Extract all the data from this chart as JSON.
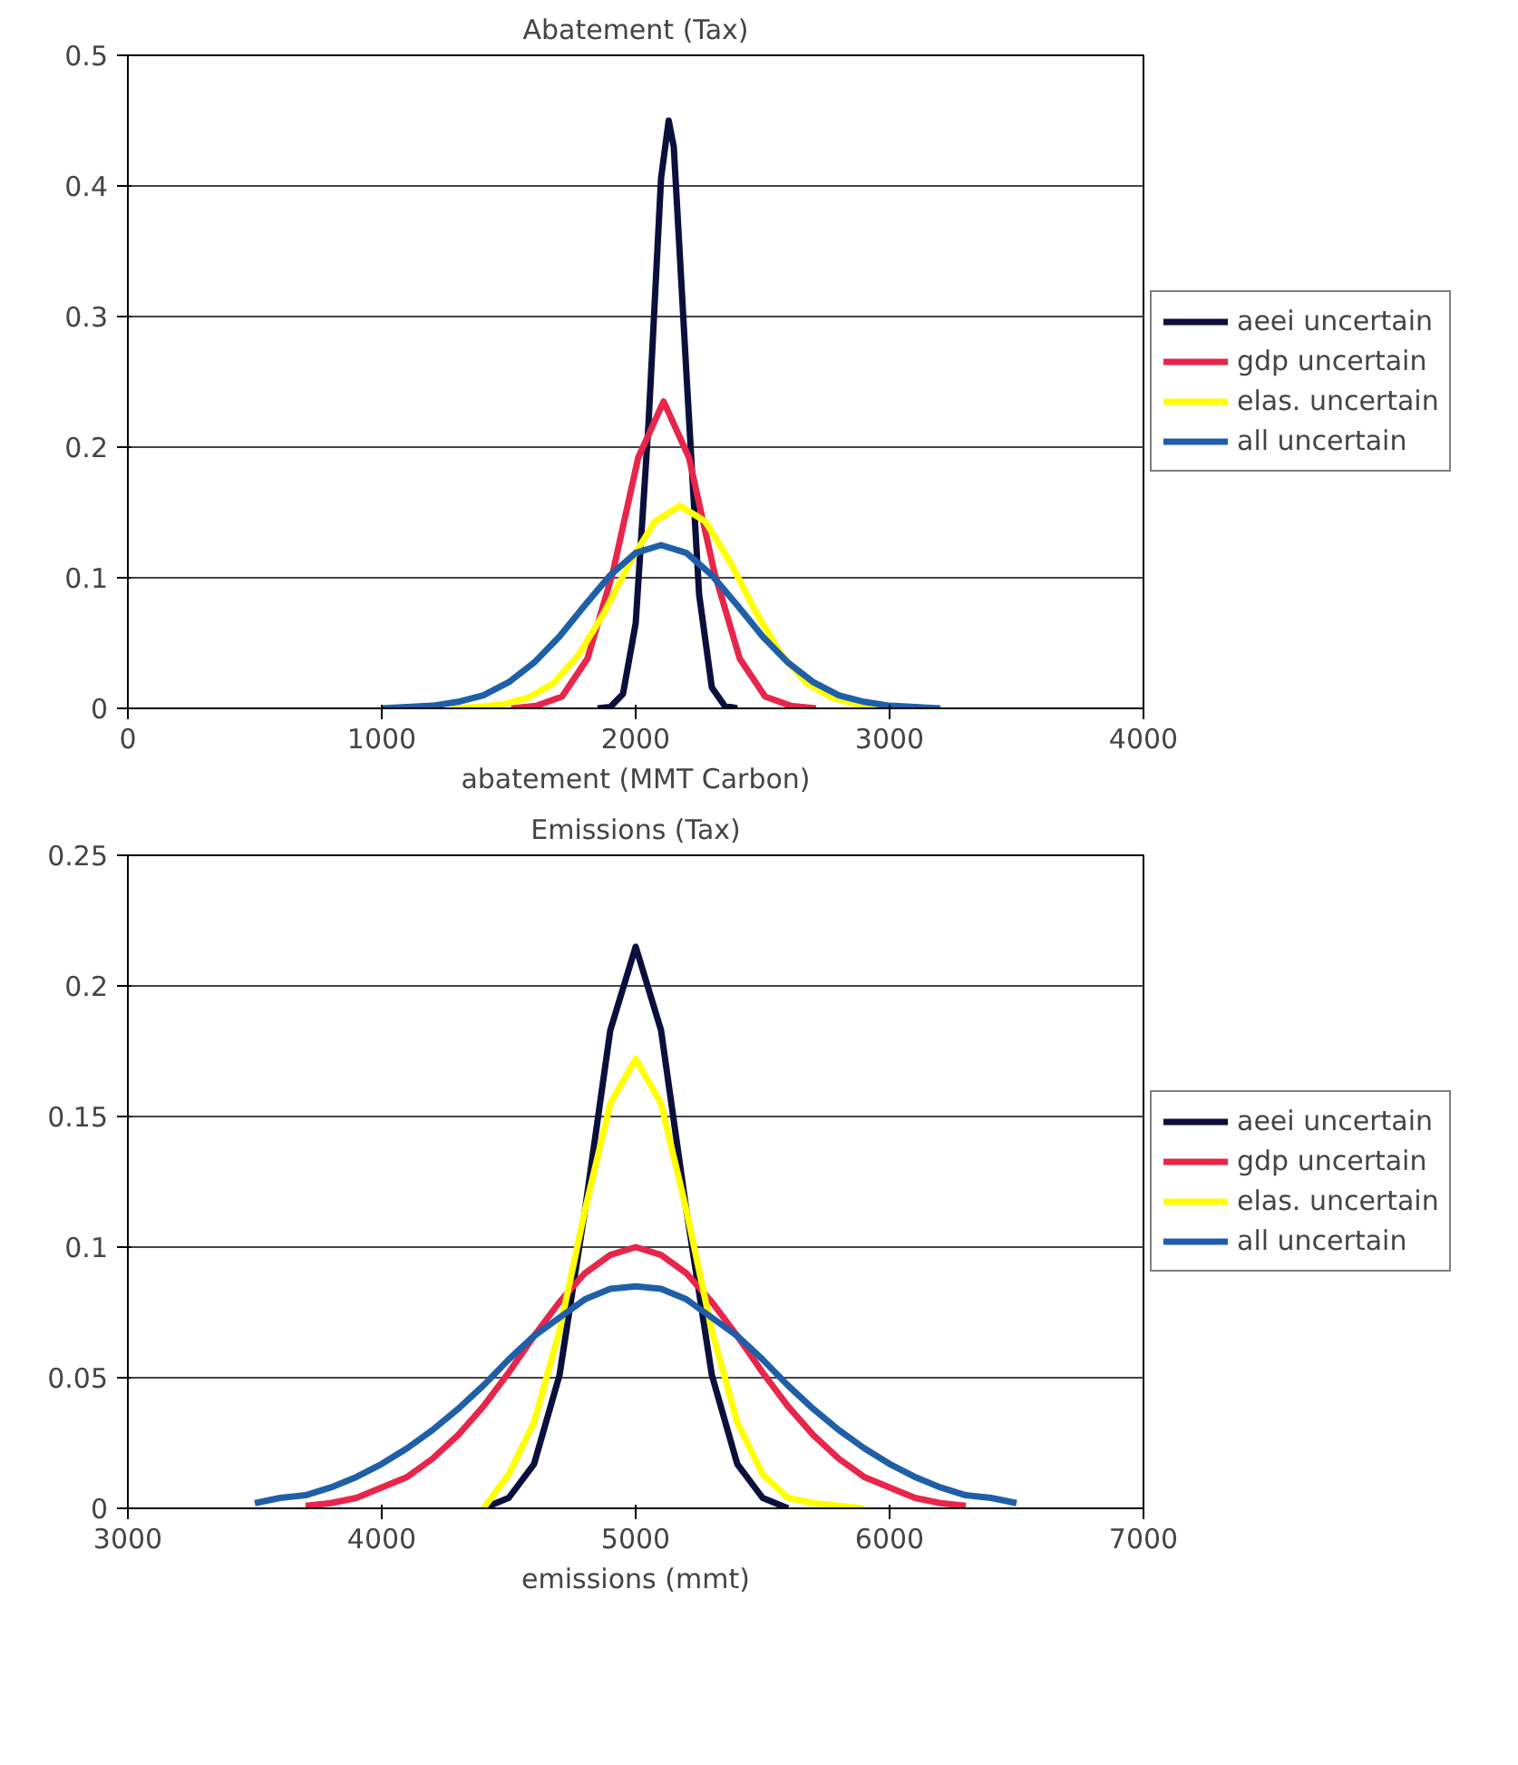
{
  "chart_data": [
    {
      "type": "line",
      "title": "Abatement (Tax)",
      "xlabel": "abatement (MMT Carbon)",
      "xlim": [
        0,
        4000
      ],
      "xticks": [
        0,
        1000,
        2000,
        3000,
        4000
      ],
      "ylim": [
        0,
        0.5
      ],
      "yticks": [
        0,
        0.1,
        0.2,
        0.3,
        0.4,
        0.5
      ],
      "grid": "y",
      "legend": "right",
      "line_style": "solid",
      "series": [
        {
          "name": "aeei uncertain",
          "color": "#0a0f3c",
          "x": [
            1850,
            1900,
            1950,
            2000,
            2050,
            2100,
            2130,
            2150,
            2200,
            2250,
            2300,
            2350,
            2400
          ],
          "values": [
            0,
            0.001,
            0.011,
            0.065,
            0.216,
            0.406,
            0.45,
            0.43,
            0.256,
            0.087,
            0.016,
            0.002,
            0
          ]
        },
        {
          "name": "gdp uncertain",
          "color": "#e8254a",
          "x": [
            1510,
            1610,
            1710,
            1810,
            1910,
            2010,
            2110,
            2210,
            2310,
            2410,
            2510,
            2610,
            2710
          ],
          "values": [
            0,
            0.002,
            0.009,
            0.038,
            0.104,
            0.192,
            0.235,
            0.192,
            0.104,
            0.038,
            0.009,
            0.002,
            0
          ]
        },
        {
          "name": "elas. uncertain",
          "color": "#ffff00",
          "x": [
            1275,
            1375,
            1475,
            1575,
            1675,
            1775,
            1875,
            1975,
            2075,
            2175,
            2275,
            2375,
            2475,
            2575,
            2675,
            2775,
            2875,
            2975,
            3075
          ],
          "values": [
            0,
            0.001,
            0.003,
            0.008,
            0.019,
            0.041,
            0.073,
            0.111,
            0.143,
            0.155,
            0.143,
            0.111,
            0.073,
            0.041,
            0.019,
            0.008,
            0.003,
            0.001,
            0
          ]
        },
        {
          "name": "all uncertain",
          "color": "#1f5fa8",
          "x": [
            1000,
            1100,
            1200,
            1300,
            1400,
            1500,
            1600,
            1700,
            1800,
            1900,
            2000,
            2100,
            2200,
            2300,
            2400,
            2500,
            2600,
            2700,
            2800,
            2900,
            3000,
            3100,
            3200
          ],
          "values": [
            0,
            0.001,
            0.002,
            0.005,
            0.01,
            0.02,
            0.035,
            0.055,
            0.079,
            0.102,
            0.119,
            0.125,
            0.119,
            0.102,
            0.079,
            0.055,
            0.035,
            0.02,
            0.01,
            0.005,
            0.002,
            0.001,
            0
          ]
        }
      ]
    },
    {
      "type": "line",
      "title": "Emissions (Tax)",
      "xlabel": "emissions (mmt)",
      "xlim": [
        3000,
        7000
      ],
      "xticks": [
        3000,
        4000,
        5000,
        6000,
        7000
      ],
      "ylim": [
        0,
        0.25
      ],
      "yticks": [
        0,
        0.05,
        0.1,
        0.15,
        0.2,
        0.25
      ],
      "grid": "y",
      "legend": "right",
      "line_style": "solid",
      "series": [
        {
          "name": "aeei uncertain",
          "color": "#0a0f3c",
          "x": [
            4400,
            4500,
            4600,
            4700,
            4800,
            4900,
            5000,
            5100,
            5200,
            5300,
            5400,
            5500,
            5600
          ],
          "values": [
            0,
            0.004,
            0.017,
            0.051,
            0.114,
            0.183,
            0.215,
            0.183,
            0.114,
            0.051,
            0.017,
            0.004,
            0
          ]
        },
        {
          "name": "gdp uncertain",
          "color": "#e8254a",
          "x": [
            3700,
            3800,
            3900,
            4000,
            4100,
            4200,
            4300,
            4400,
            4500,
            4600,
            4700,
            4800,
            4900,
            5000,
            5100,
            5200,
            5300,
            5400,
            5500,
            5600,
            5700,
            5800,
            5900,
            6000,
            6100,
            6200,
            6300
          ],
          "values": [
            0.001,
            0.002,
            0.004,
            0.008,
            0.012,
            0.019,
            0.028,
            0.039,
            0.052,
            0.066,
            0.079,
            0.09,
            0.097,
            0.1,
            0.097,
            0.09,
            0.079,
            0.066,
            0.052,
            0.039,
            0.028,
            0.019,
            0.012,
            0.008,
            0.004,
            0.002,
            0.001
          ]
        },
        {
          "name": "elas. uncertain",
          "color": "#ffff00",
          "x": [
            4400,
            4500,
            4600,
            4700,
            4800,
            4900,
            5000,
            5100,
            5200,
            5300,
            5400,
            5500,
            5600,
            5700,
            5800,
            5900
          ],
          "values": [
            0,
            0.013,
            0.033,
            0.068,
            0.114,
            0.155,
            0.172,
            0.155,
            0.114,
            0.068,
            0.033,
            0.013,
            0.004,
            0.002,
            0.001,
            0
          ]
        },
        {
          "name": "all uncertain",
          "color": "#1f5fa8",
          "x": [
            3500,
            3600,
            3700,
            3800,
            3900,
            4000,
            4100,
            4200,
            4300,
            4400,
            4500,
            4600,
            4700,
            4800,
            4900,
            5000,
            5100,
            5200,
            5300,
            5400,
            5500,
            5600,
            5700,
            5800,
            5900,
            6000,
            6100,
            6200,
            6300,
            6400,
            6500
          ],
          "values": [
            0.002,
            0.004,
            0.005,
            0.008,
            0.012,
            0.017,
            0.023,
            0.03,
            0.038,
            0.047,
            0.057,
            0.066,
            0.073,
            0.08,
            0.084,
            0.085,
            0.084,
            0.08,
            0.073,
            0.066,
            0.057,
            0.047,
            0.038,
            0.03,
            0.023,
            0.017,
            0.012,
            0.008,
            0.005,
            0.004,
            0.002
          ]
        }
      ]
    }
  ]
}
